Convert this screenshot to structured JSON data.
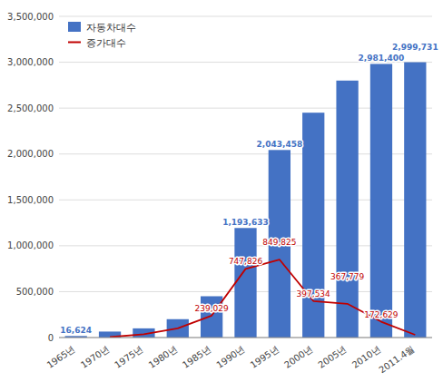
{
  "chart_data": {
    "type": "bar",
    "categories": [
      "1965년",
      "1970년",
      "1975년",
      "1980년",
      "1985년",
      "1990년",
      "1995년",
      "2000년",
      "2005년",
      "2010년",
      "2011.4월"
    ],
    "series": [
      {
        "name": "자동차대수",
        "type": "bar",
        "color": "#4472C4",
        "data_labels": true,
        "values": [
          16624,
          65000,
          100000,
          200000,
          450000,
          1193633,
          2043458,
          2450000,
          2800000,
          2981400,
          2999731
        ],
        "value_labels": [
          "16,624",
          null,
          null,
          null,
          null,
          "1,193,633",
          "2,043,458",
          null,
          null,
          "2,981,400",
          "2,999,731"
        ]
      },
      {
        "name": "증가대수",
        "type": "line",
        "color": "#C00000",
        "data_labels": true,
        "values": [
          null,
          5000,
          35000,
          100000,
          239029,
          747826,
          849825,
          397534,
          367779,
          172629,
          30000
        ],
        "value_labels": [
          null,
          null,
          null,
          null,
          "239,029",
          "747,826",
          "849,825",
          "397,534",
          "367,779",
          "172,629",
          null
        ]
      }
    ],
    "ylim": [
      0,
      3500000
    ],
    "yticks": [
      0,
      {
        "value": 500000,
        "label": "500,000"
      },
      {
        "value": 1000000,
        "label": "1,000,000"
      },
      {
        "value": 1500000,
        "label": "1,500,000"
      },
      {
        "value": 2000000,
        "label": "2,000,000"
      },
      {
        "value": 2500000,
        "label": "2,500,000"
      },
      {
        "value": 3000000,
        "label": "3,000,000"
      },
      {
        "value": 3500000,
        "label": "3,500,000"
      }
    ],
    "grid": true,
    "legend": "upper left"
  }
}
